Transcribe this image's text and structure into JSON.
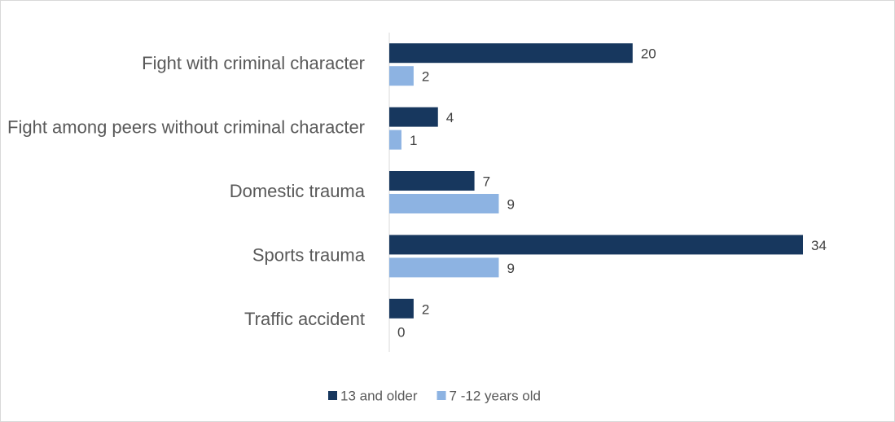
{
  "chart_data": {
    "type": "bar",
    "orientation": "horizontal",
    "categories": [
      "Fight with criminal character",
      "Fight among peers without criminal character",
      "Domestic trauma",
      "Sports trauma",
      "Traffic accident"
    ],
    "series": [
      {
        "name": "13 and older",
        "color": "#17375e",
        "values": [
          20,
          4,
          7,
          34,
          2
        ]
      },
      {
        "name": "7 -12 years old",
        "color": "#8db3e2",
        "values": [
          2,
          1,
          9,
          9,
          0
        ]
      }
    ],
    "legend": "bottom"
  }
}
